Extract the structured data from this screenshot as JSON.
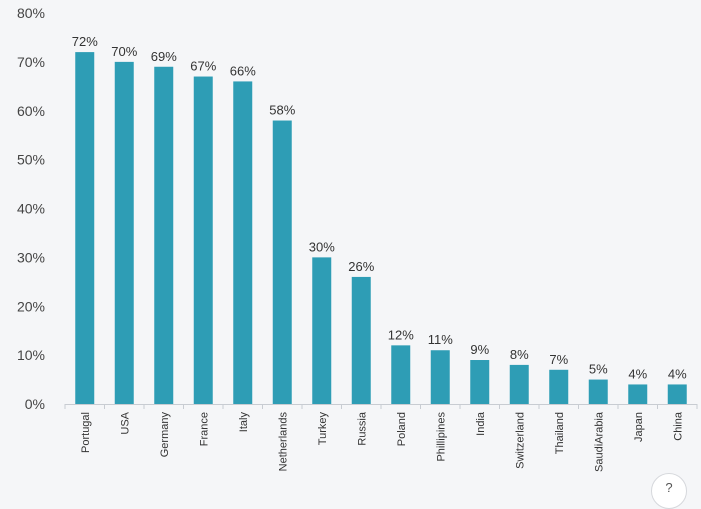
{
  "chart_data": {
    "type": "bar",
    "categories": [
      "Portugal",
      "USA",
      "Germany",
      "France",
      "Italy",
      "Netherlands",
      "Turkey",
      "Russia",
      "Poland",
      "Phillipines",
      "India",
      "Switzerland",
      "Thailand",
      "SaudiArabia",
      "Japan",
      "China"
    ],
    "values": [
      72,
      70,
      69,
      67,
      66,
      58,
      30,
      26,
      12,
      11,
      9,
      8,
      7,
      5,
      4,
      4
    ],
    "data_labels": [
      "72%",
      "70%",
      "69%",
      "67%",
      "66%",
      "58%",
      "30%",
      "26%",
      "12%",
      "11%",
      "9%",
      "8%",
      "7%",
      "5%",
      "4%",
      "4%"
    ],
    "y_ticks": [
      0,
      10,
      20,
      30,
      40,
      50,
      60,
      70,
      80
    ],
    "y_tick_labels": [
      "0%",
      "10%",
      "20%",
      "30%",
      "40%",
      "50%",
      "60%",
      "70%",
      "80%"
    ],
    "ylim": [
      0,
      80
    ],
    "grid": false,
    "bar_color": "#2e9db5",
    "title": "",
    "xlabel": "",
    "ylabel": ""
  },
  "corner_button": {
    "icon": "question-icon",
    "glyph": "?"
  }
}
